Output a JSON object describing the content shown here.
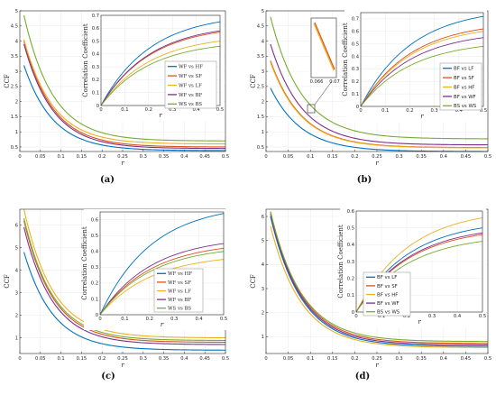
{
  "colors": {
    "blue": "#0072BD",
    "orange": "#D95319",
    "yellow": "#EDB120",
    "purple": "#7E2F8E",
    "green": "#77AC30"
  },
  "chart_data": [
    {
      "panel_label": "(a)",
      "type": "line",
      "xlabel": "r",
      "ylabel": "CCF",
      "xlim": [
        0,
        0.5
      ],
      "ylim": [
        0.35,
        5
      ],
      "xticks": [
        "0",
        "0.05",
        "0.1",
        "0.15",
        "0.2",
        "0.25",
        "0.3",
        "0.35",
        "0.4",
        "0.45",
        "0.5"
      ],
      "yticks": [
        "0.5",
        "1",
        "1.5",
        "2",
        "2.5",
        "3",
        "3.5",
        "4",
        "4.5",
        "5"
      ],
      "series": [
        {
          "name": "WF vs HF",
          "color": "blue",
          "r0": 0.01,
          "y0": 3.2,
          "yend": 0.38
        },
        {
          "name": "WF vs SF",
          "color": "orange",
          "r0": 0.01,
          "y0": 4.0,
          "yend": 0.5
        },
        {
          "name": "WF vs LF",
          "color": "yellow",
          "r0": 0.01,
          "y0": 4.05,
          "yend": 0.6
        },
        {
          "name": "WF vs BF",
          "color": "purple",
          "r0": 0.01,
          "y0": 3.9,
          "yend": 0.45
        },
        {
          "name": "WS vs BS",
          "color": "green",
          "r0": 0.01,
          "y0": 4.85,
          "yend": 0.7
        }
      ],
      "inset": {
        "xlabel": "r",
        "ylabel": "Correlation Coefficient",
        "xlim": [
          0,
          0.5
        ],
        "ylim": [
          0,
          0.7
        ],
        "xticks": [
          "0",
          "0.1",
          "0.2",
          "0.3",
          "0.4",
          "0.5"
        ],
        "yticks": [
          "0",
          "0.1",
          "0.2",
          "0.3",
          "0.4",
          "0.5",
          "0.6",
          "0.7"
        ],
        "series": [
          {
            "color": "blue",
            "yend": 0.65
          },
          {
            "color": "orange",
            "yend": 0.57
          },
          {
            "color": "yellow",
            "yend": 0.5
          },
          {
            "color": "purple",
            "yend": 0.58
          },
          {
            "color": "green",
            "yend": 0.46
          }
        ]
      }
    },
    {
      "panel_label": "(b)",
      "type": "line",
      "xlabel": "r",
      "ylabel": "CCF",
      "xlim": [
        0,
        0.5
      ],
      "ylim": [
        0.35,
        5
      ],
      "xticks": [
        "0",
        "0.05",
        "0.1",
        "0.15",
        "0.2",
        "0.25",
        "0.3",
        "0.35",
        "0.4",
        "0.45",
        "0.5"
      ],
      "yticks": [
        "0.5",
        "1",
        "1.5",
        "2",
        "2.5",
        "3",
        "3.5",
        "4",
        "4.5",
        "5"
      ],
      "series": [
        {
          "name": "BF vs LF",
          "color": "blue",
          "r0": 0.01,
          "y0": 2.45,
          "yend": 0.35
        },
        {
          "name": "BF vs SF",
          "color": "orange",
          "r0": 0.01,
          "y0": 3.35,
          "yend": 0.48
        },
        {
          "name": "BF vs HF",
          "color": "yellow",
          "r0": 0.01,
          "y0": 3.3,
          "yend": 0.47
        },
        {
          "name": "BF vs WF",
          "color": "purple",
          "r0": 0.01,
          "y0": 3.9,
          "yend": 0.57
        },
        {
          "name": "BS vs WS",
          "color": "green",
          "r0": 0.01,
          "y0": 4.8,
          "yend": 0.77
        }
      ],
      "zoom": {
        "xtick_left": "0.066",
        "xtick_right": "0.07"
      },
      "inset": {
        "xlabel": "r",
        "ylabel": "Correlation Coefficient",
        "xlim": [
          0,
          0.5
        ],
        "ylim": [
          0,
          0.75
        ],
        "xticks": [
          "0",
          "0.1",
          "0.2",
          "0.3",
          "0.4",
          "0.5"
        ],
        "yticks": [
          "0",
          "0.1",
          "0.2",
          "0.3",
          "0.4",
          "0.5",
          "0.6",
          "0.7"
        ],
        "series": [
          {
            "color": "blue",
            "yend": 0.72
          },
          {
            "color": "orange",
            "yend": 0.62
          },
          {
            "color": "yellow",
            "yend": 0.6
          },
          {
            "color": "purple",
            "yend": 0.55
          },
          {
            "color": "green",
            "yend": 0.48
          }
        ]
      }
    },
    {
      "panel_label": "(c)",
      "type": "line",
      "xlabel": "r",
      "ylabel": "CCF",
      "xlim": [
        0,
        0.5
      ],
      "ylim": [
        0.3,
        6.7
      ],
      "xticks": [
        "0",
        "0.05",
        "0.1",
        "0.15",
        "0.2",
        "0.25",
        "0.3",
        "0.35",
        "0.4",
        "0.45",
        "0.5"
      ],
      "yticks": [
        "1",
        "2",
        "3",
        "4",
        "5",
        "6"
      ],
      "series": [
        {
          "name": "WF vs HF",
          "color": "blue",
          "r0": 0.01,
          "y0": 4.8,
          "yend": 0.45
        },
        {
          "name": "WF vs SF",
          "color": "orange",
          "r0": 0.01,
          "y0": 6.2,
          "yend": 0.8
        },
        {
          "name": "WF vs LF",
          "color": "yellow",
          "r0": 0.01,
          "y0": 6.7,
          "yend": 1.0
        },
        {
          "name": "WF vs BF",
          "color": "purple",
          "r0": 0.01,
          "y0": 5.9,
          "yend": 0.7
        },
        {
          "name": "WS vs BS",
          "color": "green",
          "r0": 0.01,
          "y0": 6.3,
          "yend": 0.88
        }
      ],
      "inset": {
        "xlabel": "r",
        "ylabel": "Correlation Coefficient",
        "xlim": [
          0,
          0.5
        ],
        "ylim": [
          0,
          0.65
        ],
        "xticks": [
          "0",
          "0.1",
          "0.2",
          "0.3",
          "0.4",
          "0.5"
        ],
        "yticks": [
          "0",
          "0.1",
          "0.2",
          "0.3",
          "0.4",
          "0.5",
          "0.6"
        ],
        "series": [
          {
            "color": "blue",
            "yend": 0.64
          },
          {
            "color": "orange",
            "yend": 0.42
          },
          {
            "color": "yellow",
            "yend": 0.35
          },
          {
            "color": "purple",
            "yend": 0.45
          },
          {
            "color": "green",
            "yend": 0.4
          }
        ]
      }
    },
    {
      "panel_label": "(d)",
      "type": "line",
      "xlabel": "r",
      "ylabel": "CCF",
      "xlim": [
        0,
        0.5
      ],
      "ylim": [
        0.3,
        6.3
      ],
      "xticks": [
        "0",
        "0.05",
        "0.1",
        "0.15",
        "0.2",
        "0.25",
        "0.3",
        "0.35",
        "0.4",
        "0.45",
        "0.5"
      ],
      "yticks": [
        "1",
        "2",
        "3",
        "4",
        "5",
        "6"
      ],
      "series": [
        {
          "name": "BF vs LF",
          "color": "blue",
          "r0": 0.01,
          "y0": 6.0,
          "yend": 0.6
        },
        {
          "name": "BF vs SF",
          "color": "orange",
          "r0": 0.01,
          "y0": 6.2,
          "yend": 0.72
        },
        {
          "name": "BF vs HF",
          "color": "yellow",
          "r0": 0.01,
          "y0": 5.6,
          "yend": 0.55
        },
        {
          "name": "BF vs WF",
          "color": "purple",
          "r0": 0.01,
          "y0": 6.1,
          "yend": 0.66
        },
        {
          "name": "BS vs WS",
          "color": "green",
          "r0": 0.01,
          "y0": 6.2,
          "yend": 0.8
        }
      ],
      "inset": {
        "xlabel": "r",
        "ylabel": "Correlation Coefficient",
        "xlim": [
          0,
          0.5
        ],
        "ylim": [
          0,
          0.6
        ],
        "xticks": [
          "0",
          "0.1",
          "0.2",
          "0.3",
          "0.4",
          "0.5"
        ],
        "yticks": [
          "0",
          "0.1",
          "0.2",
          "0.3",
          "0.4",
          "0.5",
          "0.6"
        ],
        "series": [
          {
            "color": "blue",
            "yend": 0.5
          },
          {
            "color": "orange",
            "yend": 0.46
          },
          {
            "color": "yellow",
            "yend": 0.56
          },
          {
            "color": "purple",
            "yend": 0.47
          },
          {
            "color": "green",
            "yend": 0.42
          }
        ]
      }
    }
  ]
}
